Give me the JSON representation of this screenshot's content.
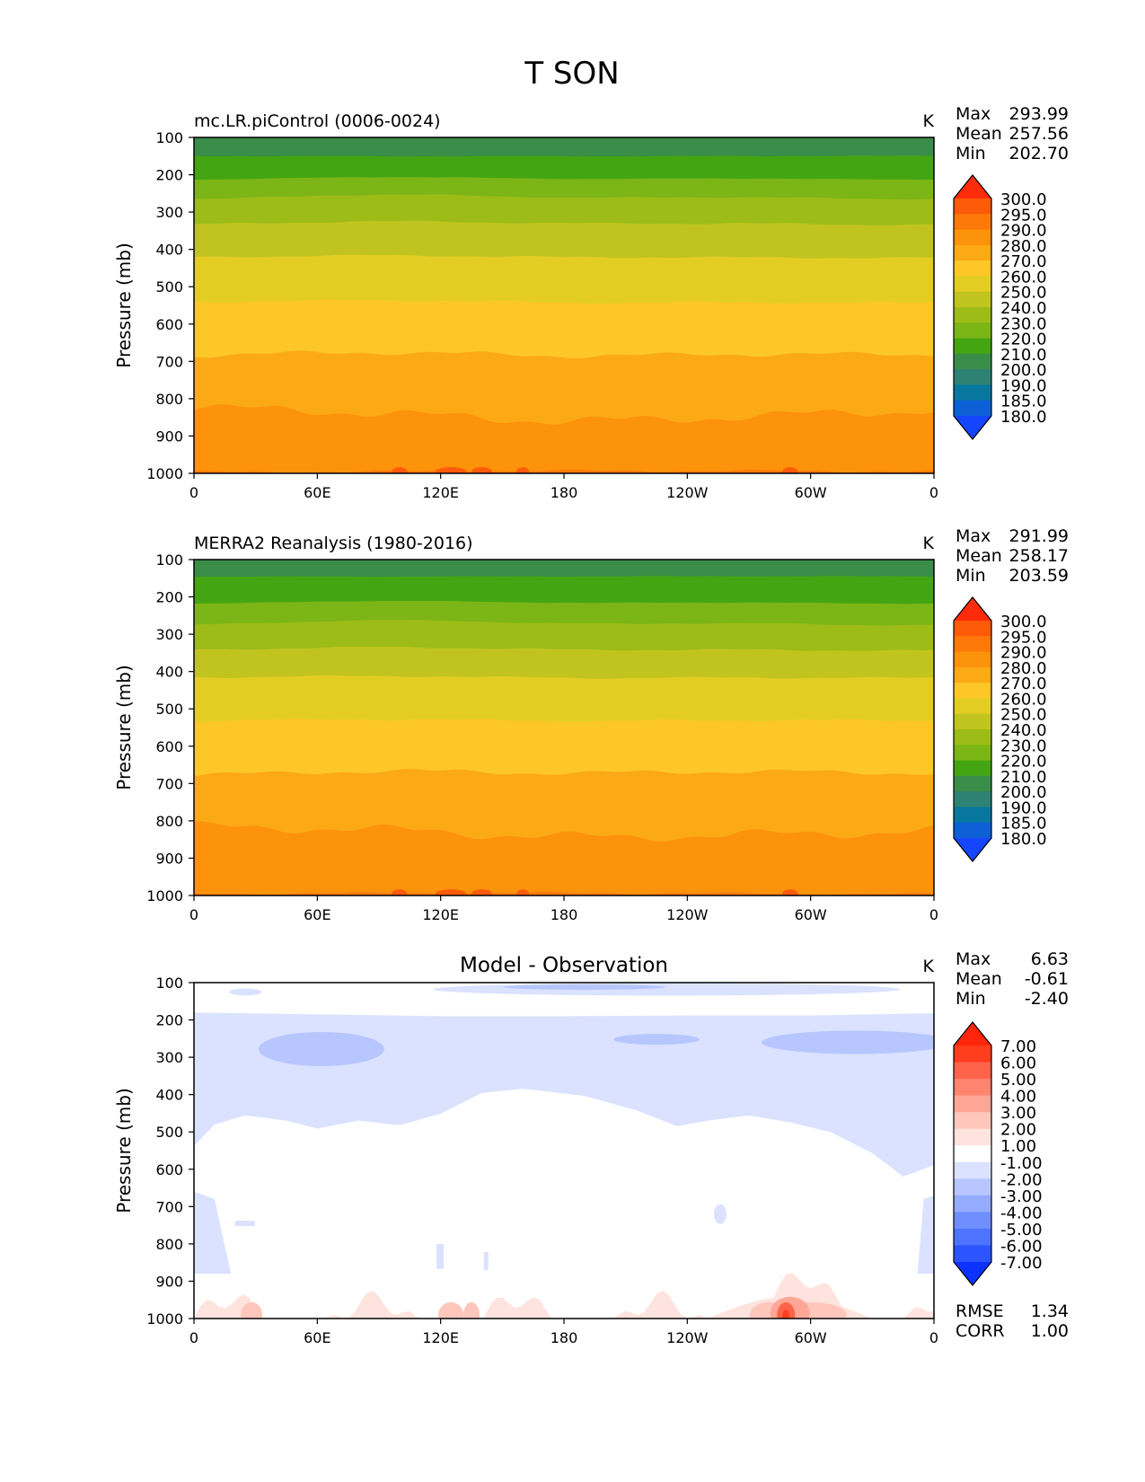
{
  "chart_data": {
    "type": "heatmap",
    "title": "T SON",
    "panels": [
      {
        "id": "model",
        "title_left": "mc.LR.piControl (0006-0024)",
        "title_center": "",
        "units": "K",
        "ylabel": "Pressure (mb)",
        "ylim": [
          1000,
          100
        ],
        "yticks": [
          "100",
          "200",
          "300",
          "400",
          "500",
          "600",
          "700",
          "800",
          "900",
          "1000"
        ],
        "xlim": [
          0,
          360
        ],
        "xticks": [
          "0",
          "60E",
          "120E",
          "180",
          "120W",
          "60W",
          "0"
        ],
        "stats": [
          [
            "Max",
            "293.99"
          ],
          [
            "Mean",
            "257.56"
          ],
          [
            "Min",
            "202.70"
          ]
        ],
        "levels": [
          180,
          185,
          190,
          200,
          210,
          220,
          230,
          240,
          250,
          260,
          270,
          280,
          290,
          295,
          300
        ],
        "boundaries": [
          {
            "p": 150,
            "lvl": 5
          },
          {
            "p": 210,
            "lvl": 6
          },
          {
            "p": 260,
            "lvl": 7
          },
          {
            "p": 330,
            "lvl": 8
          },
          {
            "p": 420,
            "lvl": 9
          },
          {
            "p": 540,
            "lvl": 10
          },
          {
            "p": 680,
            "lvl": 11
          },
          {
            "p": 840,
            "lvl": 12
          },
          {
            "p": 995,
            "lvl": 13
          }
        ],
        "surface_lvl": 13
      },
      {
        "id": "obs",
        "title_left": "MERRA2 Reanalysis (1980-2016)",
        "title_center": "",
        "units": "K",
        "ylabel": "Pressure (mb)",
        "ylim": [
          1000,
          100
        ],
        "yticks": [
          "100",
          "200",
          "300",
          "400",
          "500",
          "600",
          "700",
          "800",
          "900",
          "1000"
        ],
        "xlim": [
          0,
          360
        ],
        "xticks": [
          "0",
          "60E",
          "120E",
          "180",
          "120W",
          "60W",
          "0"
        ],
        "stats": [
          [
            "Max",
            "291.99"
          ],
          [
            "Mean",
            "258.17"
          ],
          [
            "Min",
            "203.59"
          ]
        ],
        "levels": [
          180,
          185,
          190,
          200,
          210,
          220,
          230,
          240,
          250,
          260,
          270,
          280,
          290,
          295,
          300
        ],
        "boundaries": [
          {
            "p": 145,
            "lvl": 5
          },
          {
            "p": 215,
            "lvl": 6
          },
          {
            "p": 270,
            "lvl": 7
          },
          {
            "p": 340,
            "lvl": 8
          },
          {
            "p": 415,
            "lvl": 9
          },
          {
            "p": 530,
            "lvl": 10
          },
          {
            "p": 670,
            "lvl": 11
          },
          {
            "p": 830,
            "lvl": 12
          },
          {
            "p": 995,
            "lvl": 13
          }
        ],
        "surface_lvl": 13
      },
      {
        "id": "diff",
        "title_left": "",
        "title_center": "Model - Observation",
        "units": "K",
        "ylabel": "Pressure (mb)",
        "ylim": [
          1000,
          100
        ],
        "yticks": [
          "100",
          "200",
          "300",
          "400",
          "500",
          "600",
          "700",
          "800",
          "900",
          "1000"
        ],
        "xlim": [
          0,
          360
        ],
        "xticks": [
          "0",
          "60E",
          "120E",
          "180",
          "120W",
          "60W",
          "0"
        ],
        "stats": [
          [
            "Max",
            "6.63"
          ],
          [
            "Mean",
            "-0.61"
          ],
          [
            "Min",
            "-2.40"
          ]
        ],
        "levels": [
          -7,
          -6,
          -5,
          -4,
          -3,
          -2,
          -1,
          1,
          2,
          3,
          4,
          5,
          6,
          7
        ],
        "bottom_stats": [
          [
            "RMSE",
            "1.34"
          ],
          [
            "CORR",
            "1.00"
          ]
        ]
      }
    ],
    "colorbar_temperature": [
      "180.0",
      "185.0",
      "190.0",
      "200.0",
      "210.0",
      "220.0",
      "230.0",
      "240.0",
      "250.0",
      "260.0",
      "270.0",
      "280.0",
      "290.0",
      "295.0",
      "300.0"
    ],
    "colorbar_difference": [
      "-7.00",
      "-6.00",
      "-5.00",
      "-4.00",
      "-3.00",
      "-2.00",
      "-1.00",
      "1.00",
      "2.00",
      "3.00",
      "4.00",
      "5.00",
      "6.00",
      "7.00"
    ]
  },
  "colors": {
    "temperature": [
      "#1546ff",
      "#0d5fd6",
      "#0777a0",
      "#2e8273",
      "#3a8c49",
      "#44a512",
      "#7cb516",
      "#9dbc18",
      "#c1c41f",
      "#e4cd23",
      "#fdc727",
      "#fca916",
      "#fd920b",
      "#fd790a",
      "#fd5a0a",
      "#ff2c0c"
    ],
    "difference": [
      "#0b32ff",
      "#2c55ff",
      "#4d73ff",
      "#6f8fff",
      "#95abff",
      "#b7c6ff",
      "#dae2ff",
      "#ffffff",
      "#ffe3de",
      "#ffc6bc",
      "#ffa797",
      "#ff8570",
      "#ff644a",
      "#ff3e1e",
      "#ff250a"
    ]
  }
}
